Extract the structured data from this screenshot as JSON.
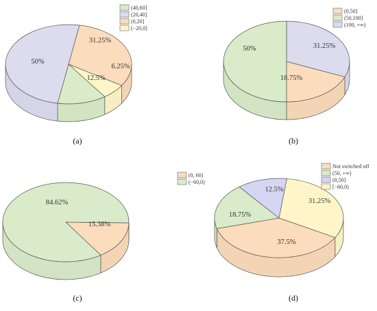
{
  "figure": {
    "panels": [
      {
        "id": "a",
        "label": "(a)"
      },
      {
        "id": "b",
        "label": "(b)"
      },
      {
        "id": "c",
        "label": "(c)"
      },
      {
        "id": "d",
        "label": "(d)"
      }
    ]
  },
  "colors": {
    "orange": "#fbdcbc",
    "gray": "#dcdcee",
    "green": "#d9ebc9",
    "yellow": "#fef6c8",
    "lavender": "#d6d6f2",
    "edge": "#555555"
  },
  "chart_data": [
    {
      "type": "pie",
      "panel": "a",
      "legend": [
        "(40,60]",
        "(20,40]",
        "(0,20]",
        "(−20,0]"
      ],
      "labels": [
        "31.25%",
        "50%",
        "12.5%",
        "6.25%"
      ],
      "values": [
        31.25,
        50,
        12.5,
        6.25
      ],
      "colors": [
        "orange",
        "gray",
        "green",
        "yellow"
      ],
      "legend_colors": [
        "green",
        "gray",
        "orange",
        "yellow"
      ],
      "legend_position": "top-right"
    },
    {
      "type": "pie",
      "panel": "b",
      "legend": [
        "(0,50]",
        "(50,100]",
        "(100, +∞)"
      ],
      "labels": [
        "31.25%",
        "18.75%",
        "50%"
      ],
      "values": [
        31.25,
        18.75,
        50
      ],
      "colors": [
        "gray",
        "orange",
        "green"
      ],
      "legend_colors": [
        "orange",
        "green",
        "gray"
      ],
      "legend_position": "top-right"
    },
    {
      "type": "pie",
      "panel": "c",
      "legend": [
        "(0, 60)",
        "(−60,0)"
      ],
      "labels": [
        "15.38%",
        "84.62%"
      ],
      "values": [
        15.38,
        84.62
      ],
      "colors": [
        "orange",
        "green"
      ],
      "legend_colors": [
        "orange",
        "green"
      ],
      "legend_position": "top-right"
    },
    {
      "type": "pie",
      "panel": "d",
      "legend": [
        "Not switched off",
        "(50, +∞)",
        "(0,50]",
        "[−60,0)"
      ],
      "labels": [
        "31.25%",
        "37.5%",
        "18.75%",
        "12.5%"
      ],
      "values": [
        31.25,
        37.5,
        18.75,
        12.5
      ],
      "colors": [
        "yellow",
        "orange",
        "green",
        "lavender"
      ],
      "legend_colors": [
        "orange",
        "green",
        "lavender",
        "yellow"
      ],
      "legend_position": "top-right"
    }
  ]
}
